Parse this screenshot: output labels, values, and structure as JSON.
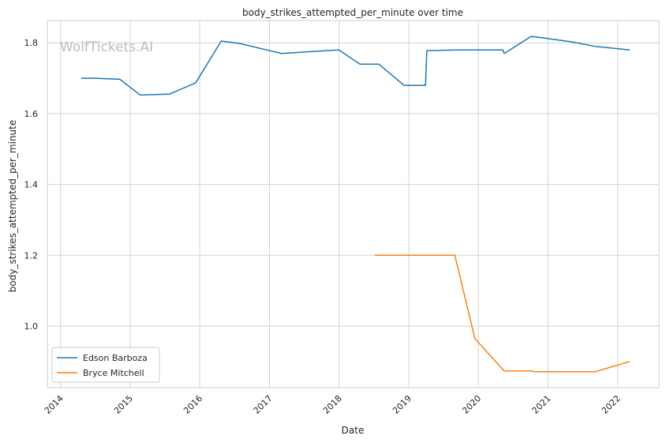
{
  "chart_data": {
    "type": "line",
    "title": "body_strikes_attempted_per_minute over time",
    "xlabel": "Date",
    "ylabel": "body_strikes_attempted_per_minute",
    "watermark": "WolfTickets.AI",
    "xlim": [
      "2013-10-24",
      "2022-08-05"
    ],
    "ylim": [
      0.826,
      1.863
    ],
    "x_ticks": [
      "2014",
      "2015",
      "2016",
      "2017",
      "2018",
      "2019",
      "2020",
      "2021",
      "2022"
    ],
    "y_ticks": [
      1.0,
      1.2,
      1.4,
      1.6,
      1.8
    ],
    "y_tick_labels": [
      "1.0",
      "1.2",
      "1.4",
      "1.6",
      "1.8"
    ],
    "grid": true,
    "legend_position": "lower-left",
    "series": [
      {
        "name": "Edson Barboza",
        "color": "#1f77b4",
        "points": [
          [
            "2014-04-19",
            1.7
          ],
          [
            "2014-07-06",
            1.7
          ],
          [
            "2014-11-08",
            1.697
          ],
          [
            "2015-02-22",
            1.653
          ],
          [
            "2015-07-25",
            1.655
          ],
          [
            "2015-12-11",
            1.687
          ],
          [
            "2016-04-23",
            1.805
          ],
          [
            "2016-07-30",
            1.798
          ],
          [
            "2017-03-04",
            1.77
          ],
          [
            "2017-12-30",
            1.78
          ],
          [
            "2018-04-21",
            1.74
          ],
          [
            "2018-07-28",
            1.74
          ],
          [
            "2018-12-08",
            1.68
          ],
          [
            "2019-03-30",
            1.68
          ],
          [
            "2019-04-06",
            1.778
          ],
          [
            "2019-09-14",
            1.78
          ],
          [
            "2020-05-09",
            1.78
          ],
          [
            "2020-05-16",
            1.77
          ],
          [
            "2020-10-03",
            1.818
          ],
          [
            "2020-10-24",
            1.817
          ],
          [
            "2021-05-01",
            1.803
          ],
          [
            "2021-09-04",
            1.79
          ],
          [
            "2022-03-05",
            1.78
          ]
        ]
      },
      {
        "name": "Bryce Mitchell",
        "color": "#ff7f0e",
        "points": [
          [
            "2018-07-07",
            1.2
          ],
          [
            "2019-08-31",
            1.2
          ],
          [
            "2019-12-14",
            0.965
          ],
          [
            "2020-05-16",
            0.873
          ],
          [
            "2020-10-10",
            0.873
          ],
          [
            "2020-10-24",
            0.871
          ],
          [
            "2021-09-04",
            0.871
          ],
          [
            "2022-03-05",
            0.9
          ]
        ]
      }
    ]
  }
}
